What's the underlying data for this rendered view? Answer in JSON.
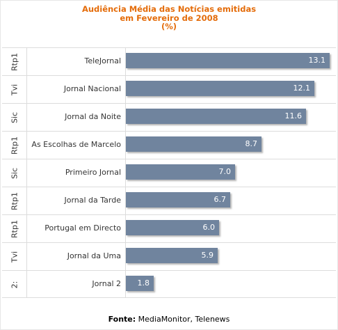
{
  "chart_data": {
    "type": "bar",
    "orientation": "horizontal",
    "title_lines": [
      "Audiência Média das Notícias emitidas",
      "em Fevereiro de 2008",
      "(%)"
    ],
    "categories": [
      {
        "channel": "Rtp1",
        "program": "TeleJornal"
      },
      {
        "channel": "Tvi",
        "program": "Jornal Nacional"
      },
      {
        "channel": "Sic",
        "program": "Jornal da Noite"
      },
      {
        "channel": "Rtp1",
        "program": "As Escolhas de Marcelo"
      },
      {
        "channel": "Sic",
        "program": "Primeiro Jornal"
      },
      {
        "channel": "Rtp1",
        "program": "Jornal da Tarde"
      },
      {
        "channel": "Rtp1",
        "program": "Portugal em Directo"
      },
      {
        "channel": "Tvi",
        "program": "Jornal da Uma"
      },
      {
        "channel": "2:",
        "program": "Jornal 2"
      }
    ],
    "values": [
      13.1,
      12.1,
      11.6,
      8.7,
      7.0,
      6.7,
      6.0,
      5.9,
      1.8
    ],
    "value_labels": [
      "13.1",
      "12.1",
      "11.6",
      "8.7",
      "7.0",
      "6.7",
      "6.0",
      "5.9",
      "1.8"
    ],
    "xlim": [
      0,
      13.1
    ],
    "grid": false,
    "legend": "none",
    "bar_color": "#70849e",
    "title_color": "#e46c0a"
  },
  "source": {
    "label": "Fonte:",
    "text": "MediaMonitor, Telenews"
  }
}
